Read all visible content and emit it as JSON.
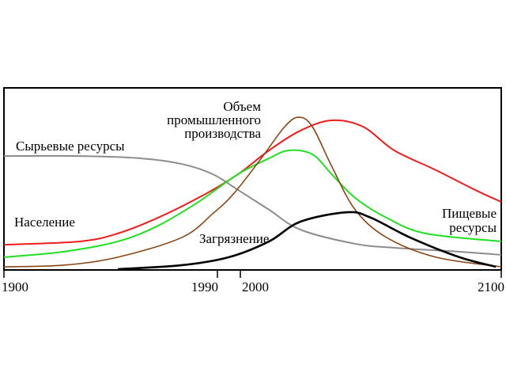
{
  "chart_data": {
    "type": "line",
    "title": "",
    "xlabel": "",
    "ylabel": "",
    "xlim": [
      1900,
      2100
    ],
    "ylim": [
      0,
      100
    ],
    "grid": false,
    "legend": "none (series labelled directly on the curves)",
    "x_ticks": [
      1900,
      1990,
      2000,
      2100
    ],
    "x_tick_labels": [
      "1900",
      "1990",
      "2000",
      "2100"
    ],
    "series": [
      {
        "name": "Сырьевые ресурсы",
        "color": "#8c8c8c",
        "x": [
          1900,
          1932,
          1958,
          1975,
          1988,
          1999,
          2011,
          2023,
          2044,
          2059,
          2084,
          2100
        ],
        "y": [
          62.4,
          62.4,
          61.1,
          58,
          52.4,
          43.7,
          32.8,
          21.8,
          14,
          11.8,
          9.6,
          7.9
        ]
      },
      {
        "name": "Население",
        "color": "#ee1c1c",
        "x": [
          1900,
          1932,
          1948,
          1965,
          1985,
          1999,
          2011,
          2023,
          2035,
          2047,
          2059,
          2075,
          2090,
          2100
        ],
        "y": [
          13.5,
          15.3,
          19.7,
          28.4,
          41.5,
          52.4,
          65.5,
          76.4,
          82.1,
          78.6,
          65.5,
          54.6,
          43.7,
          37.1
        ]
      },
      {
        "name": "Пищевые ресурсы",
        "color": "#22e022",
        "x": [
          1900,
          1925,
          1948,
          1965,
          1982,
          1999,
          2011,
          2018.5,
          2027.6,
          2035,
          2044,
          2056,
          2071,
          2100
        ],
        "y": [
          6.6,
          9.6,
          15.3,
          24,
          37.1,
          52.4,
          61.1,
          65.5,
          63.3,
          52.4,
          39.3,
          28.4,
          19.7,
          15.3
        ]
      },
      {
        "name": "Объем промышленного производства",
        "color": "#8b4513",
        "x": [
          1900,
          1925,
          1948,
          1975,
          1988,
          1997,
          2008,
          2017,
          2022.4,
          2027.6,
          2035,
          2044,
          2056,
          2075,
          2100
        ],
        "y": [
          1.3,
          2.2,
          6.6,
          17.5,
          30.6,
          41.5,
          61.1,
          78.6,
          83.8,
          78.6,
          56.8,
          32.8,
          17.5,
          6.6,
          1.3
        ]
      },
      {
        "name": "Загрязнение",
        "color": "#000000",
        "x": [
          1948,
          1975,
          1995,
          2011,
          2023,
          2041,
          2050,
          2065,
          2084,
          2098
        ],
        "y": [
          0,
          2.2,
          6.6,
          15.3,
          26.2,
          31.4,
          28.4,
          17.5,
          6.6,
          1.3
        ]
      }
    ]
  },
  "labels": {
    "resources": "Сырьевые ресурсы",
    "population": "Население",
    "industry_1": "Объем",
    "industry_2": "промышленного",
    "industry_3": "производства",
    "pollution": "Загрязнение",
    "food_1": "Пищевые",
    "food_2": "ресурсы"
  }
}
